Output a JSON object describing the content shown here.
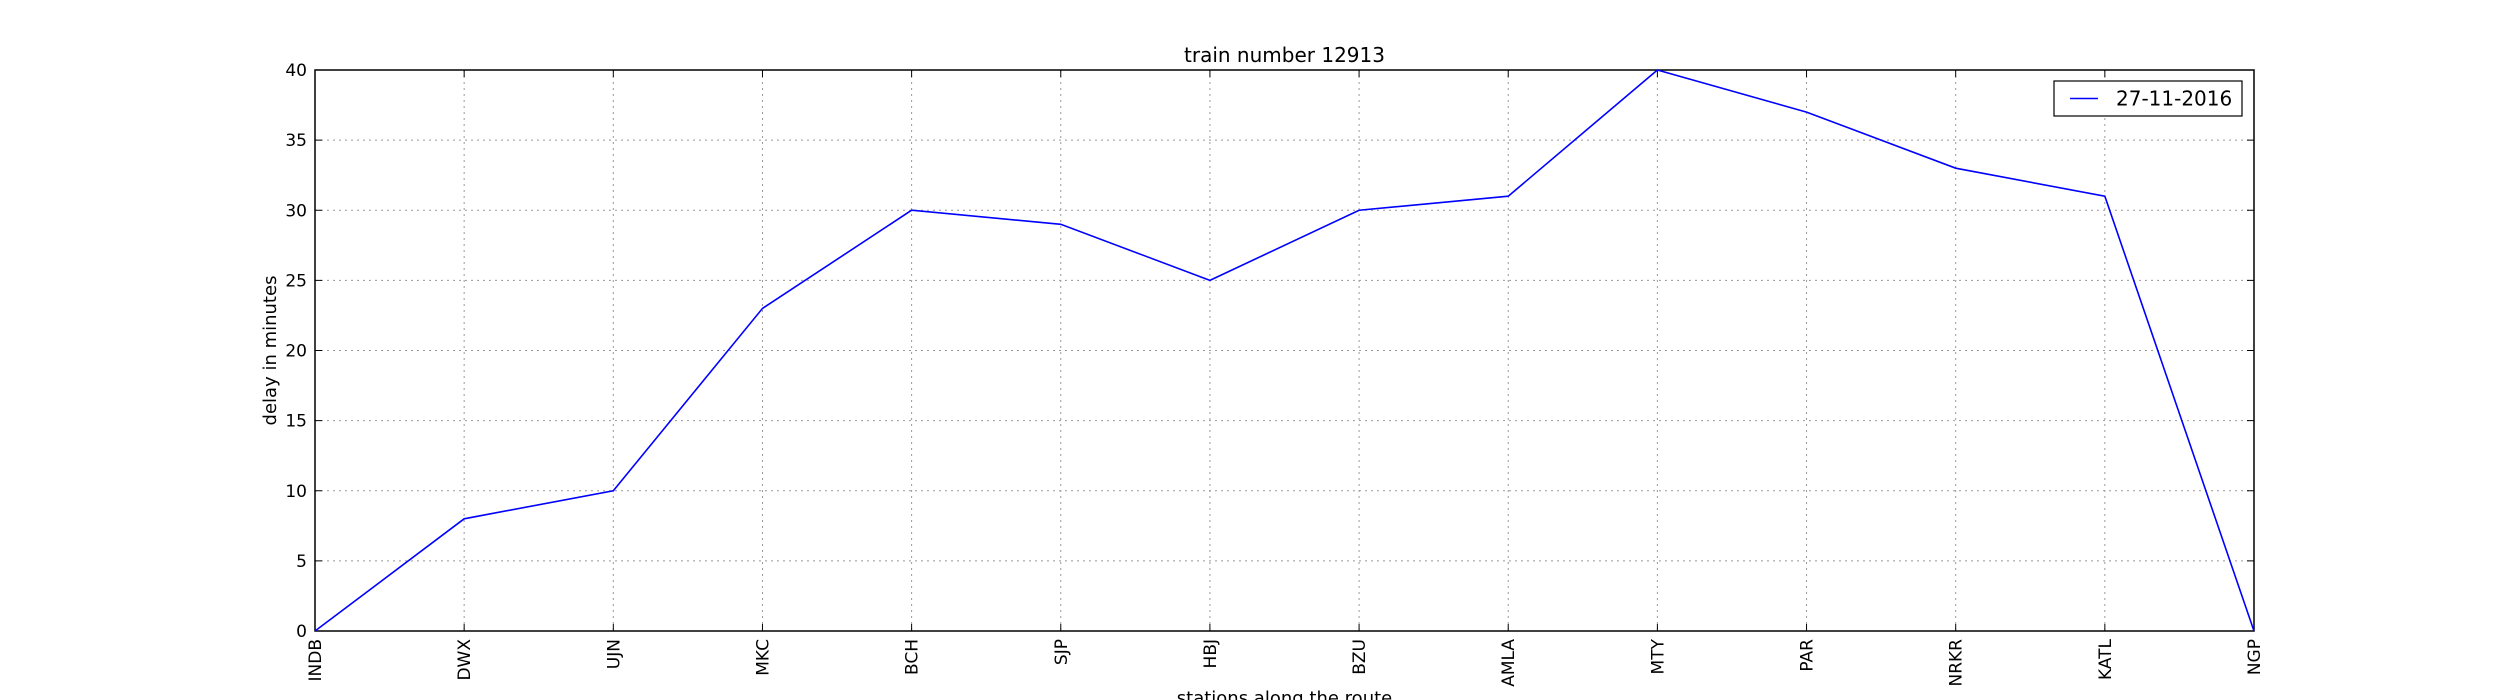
{
  "chart_data": {
    "type": "line",
    "title": "train number 12913",
    "xlabel": "stations along the route",
    "ylabel": "delay in minutes",
    "categories": [
      "INDB",
      "DWX",
      "UJN",
      "MKC",
      "BCH",
      "SJP",
      "HBJ",
      "BZU",
      "AMLA",
      "MTY",
      "PAR",
      "NRKR",
      "KATL",
      "NGP"
    ],
    "series": [
      {
        "name": "27-11-2016",
        "color": "#0000ff",
        "values": [
          0,
          8,
          10,
          23,
          30,
          29,
          25,
          30,
          31,
          40,
          37,
          33,
          31,
          0
        ]
      }
    ],
    "ylim": [
      0,
      40
    ],
    "yticks": [
      "0",
      "5",
      "10",
      "15",
      "20",
      "25",
      "30",
      "35",
      "40"
    ],
    "grid": true,
    "legend_position": "top-right"
  }
}
